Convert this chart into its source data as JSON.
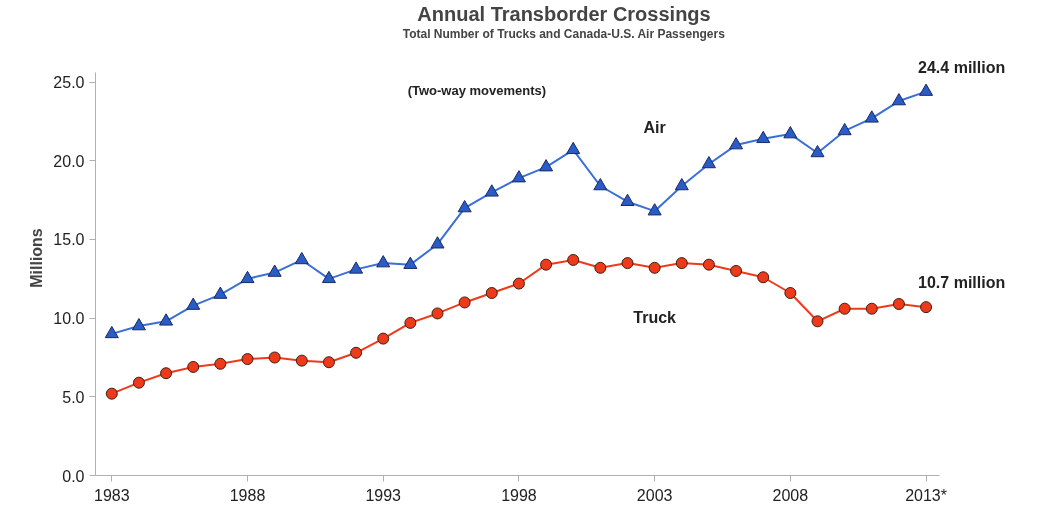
{
  "chart_data": {
    "type": "line",
    "title": "Annual Transborder Crossings",
    "subtitle": "Total Number of Trucks and Canada-U.S. Air Passengers",
    "ylabel": "Millions",
    "x": [
      1983,
      1984,
      1985,
      1986,
      1987,
      1988,
      1989,
      1990,
      1991,
      1992,
      1993,
      1994,
      1995,
      1996,
      1997,
      1998,
      1999,
      2000,
      2001,
      2002,
      2003,
      2004,
      2005,
      2006,
      2007,
      2008,
      2009,
      2010,
      2011,
      2012,
      2013
    ],
    "series": [
      {
        "name": "Air",
        "color": "#3a6fd8",
        "marker": "triangle",
        "values": [
          9.0,
          9.5,
          9.8,
          10.8,
          11.5,
          12.5,
          12.9,
          13.7,
          12.5,
          13.1,
          13.5,
          13.4,
          14.7,
          17.0,
          18.0,
          18.9,
          19.6,
          20.7,
          18.4,
          17.4,
          16.8,
          18.4,
          19.8,
          21.0,
          21.4,
          21.7,
          20.5,
          21.9,
          22.7,
          23.8,
          24.4
        ]
      },
      {
        "name": "Truck",
        "color": "#ee3a1a",
        "marker": "circle",
        "values": [
          5.2,
          5.9,
          6.5,
          6.9,
          7.1,
          7.4,
          7.5,
          7.3,
          7.2,
          7.8,
          8.7,
          9.7,
          10.3,
          11.0,
          11.6,
          12.2,
          13.4,
          13.7,
          13.2,
          13.5,
          13.2,
          13.5,
          13.4,
          13.0,
          12.6,
          11.6,
          9.8,
          10.6,
          10.6,
          10.9,
          10.7
        ]
      }
    ],
    "xlim": [
      1982.4,
      2013.5
    ],
    "xticks": [
      1983,
      1988,
      1993,
      1998,
      2003,
      2008,
      {
        "value": 2013,
        "label": "2013*"
      }
    ],
    "ylim": [
      0,
      25.6
    ],
    "yticks": [
      {
        "value": 0,
        "label": "0.0"
      },
      {
        "value": 5,
        "label": "5.0"
      },
      {
        "value": 10,
        "label": "10.0"
      },
      {
        "value": 15,
        "label": "15.0"
      },
      {
        "value": 20,
        "label": "20.0"
      },
      {
        "value": 25,
        "label": "25.0"
      }
    ],
    "annotations": [
      "(Two-way movements)",
      {
        "text": "24.4 million",
        "x": 2013,
        "y": 24.4
      },
      {
        "text": "10.7 million",
        "x": 2013,
        "y": 10.7
      }
    ],
    "grid": false,
    "line_style": "solid"
  }
}
